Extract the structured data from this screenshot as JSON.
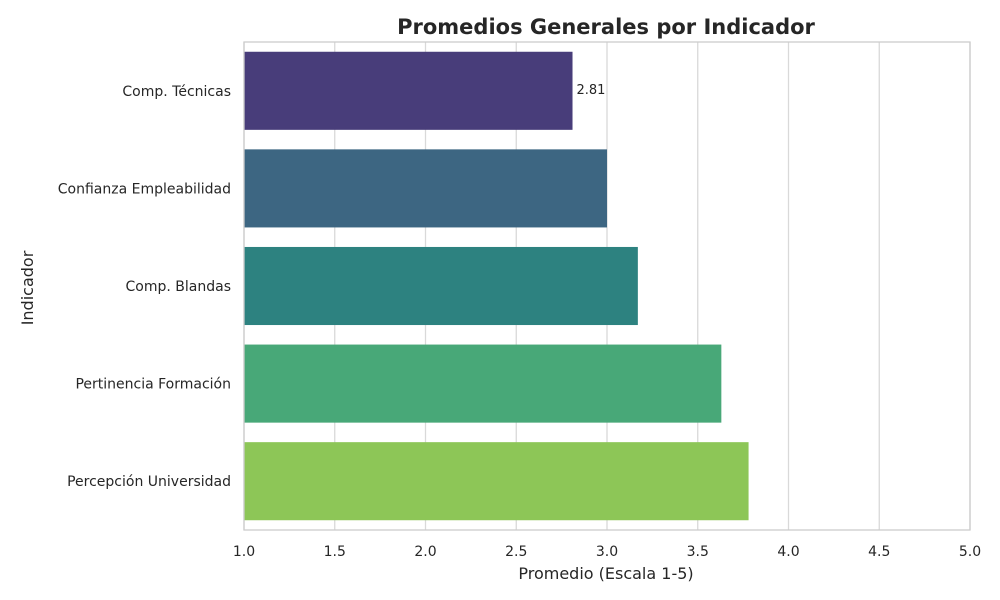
{
  "chart_data": {
    "type": "bar",
    "orientation": "horizontal",
    "title": "Promedios Generales por Indicador",
    "xlabel": "Promedio (Escala 1-5)",
    "ylabel": "Indicador",
    "xlim": [
      1.0,
      5.0
    ],
    "xticks": [
      "1.0",
      "1.5",
      "2.0",
      "2.5",
      "3.0",
      "3.5",
      "4.0",
      "4.5",
      "5.0"
    ],
    "grid": true,
    "categories": [
      "Comp. Técnicas",
      "Confianza Empleabilidad",
      "Comp. Blandas",
      "Pertinencia Formación",
      "Percepción Universidad"
    ],
    "values": [
      2.81,
      3.0,
      3.17,
      3.63,
      3.78
    ],
    "data_labels": [
      "2.81",
      "",
      "",
      "",
      ""
    ],
    "colors": [
      "#483d7a",
      "#3d6682",
      "#2d8280",
      "#48a878",
      "#8dc657"
    ]
  }
}
